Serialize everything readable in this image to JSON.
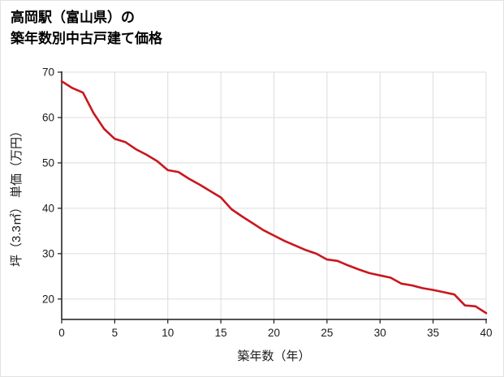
{
  "title": {
    "line1": "高岡駅（富山県）の",
    "line2": "築年数別中古戸建て価格"
  },
  "chart_data": {
    "type": "line",
    "title": "高岡駅（富山県）の築年数別中古戸建て価格",
    "xlabel": "築年数（年）",
    "ylabel": "坪（3.3㎡） 単価（万円）",
    "x": [
      0,
      1,
      2,
      3,
      4,
      5,
      6,
      7,
      8,
      9,
      10,
      11,
      12,
      13,
      14,
      15,
      16,
      17,
      18,
      19,
      20,
      21,
      22,
      23,
      24,
      25,
      26,
      27,
      28,
      29,
      30,
      31,
      32,
      33,
      34,
      35,
      36,
      37,
      38,
      39,
      40
    ],
    "values": [
      68,
      66.5,
      65.5,
      61,
      57.5,
      55.3,
      54.6,
      53,
      51.8,
      50.4,
      48.4,
      48,
      46.5,
      45.2,
      43.8,
      42.4,
      39.8,
      38.2,
      36.7,
      35.2,
      34,
      32.8,
      31.8,
      30.8,
      30,
      28.7,
      28.4,
      27.4,
      26.5,
      25.7,
      25.2,
      24.7,
      23.4,
      23,
      22.4,
      22,
      21.5,
      21,
      18.6,
      18.4,
      16.9
    ],
    "xlim": [
      0,
      40
    ],
    "ylim": [
      15.5,
      70
    ],
    "x_ticks": [
      0,
      5,
      10,
      15,
      20,
      25,
      30,
      35,
      40
    ],
    "y_ticks": [
      20,
      30,
      40,
      50,
      60,
      70
    ],
    "grid": true,
    "legend": "none",
    "line_color": "#c9161d",
    "grid_color": "#dcdcdc",
    "axis_color": "#1a1a1a"
  }
}
